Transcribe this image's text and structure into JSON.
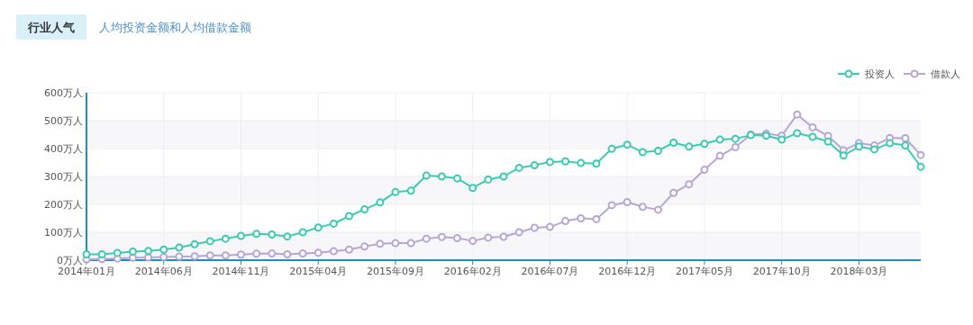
{
  "chart_data": {
    "type": "line",
    "title": "行业人气",
    "subtitle": "人均投资金额和人均借款金额",
    "x": [
      "2014-01",
      "2014-02",
      "2014-03",
      "2014-04",
      "2014-05",
      "2014-06",
      "2014-07",
      "2014-08",
      "2014-09",
      "2014-10",
      "2014-11",
      "2014-12",
      "2015-01",
      "2015-02",
      "2015-03",
      "2015-04",
      "2015-05",
      "2015-06",
      "2015-07",
      "2015-08",
      "2015-09",
      "2015-10",
      "2015-11",
      "2015-12",
      "2016-01",
      "2016-02",
      "2016-03",
      "2016-04",
      "2016-05",
      "2016-06",
      "2016-07",
      "2016-08",
      "2016-09",
      "2016-10",
      "2016-11",
      "2016-12",
      "2017-01",
      "2017-02",
      "2017-03",
      "2017-04",
      "2017-05",
      "2017-06",
      "2017-07",
      "2017-08",
      "2017-09",
      "2017-10",
      "2017-11",
      "2017-12",
      "2018-01",
      "2018-02",
      "2018-03",
      "2018-04",
      "2018-05",
      "2018-06",
      "2018-07"
    ],
    "series": [
      {
        "name": "投资人",
        "color": "#3ccbb2",
        "values": [
          21,
          21,
          26,
          31,
          33,
          38,
          45,
          57,
          68,
          77,
          87,
          94,
          92,
          85,
          100,
          117,
          131,
          158,
          182,
          207,
          244,
          249,
          303,
          300,
          293,
          259,
          289,
          300,
          331,
          340,
          352,
          354,
          348,
          346,
          399,
          414,
          387,
          392,
          421,
          407,
          417,
          432,
          435,
          448,
          446,
          432,
          455,
          442,
          425,
          375,
          407,
          397,
          419,
          411,
          335
        ]
      },
      {
        "name": "借款人",
        "color": "#b7a6d6",
        "values": [
          3,
          4,
          6,
          9,
          10,
          11,
          13,
          14,
          17,
          17,
          20,
          23,
          24,
          21,
          24,
          27,
          32,
          38,
          49,
          59,
          61,
          61,
          77,
          83,
          79,
          69,
          81,
          84,
          100,
          116,
          119,
          140,
          150,
          147,
          197,
          208,
          191,
          181,
          241,
          272,
          324,
          374,
          405,
          450,
          453,
          446,
          522,
          476,
          445,
          394,
          419,
          411,
          438,
          437,
          377
        ]
      }
    ],
    "xlim": [
      "2014-01",
      "2018-07"
    ],
    "xticks": [
      {
        "value": "2014-01",
        "label": "2014年01月"
      },
      {
        "value": "2014-06",
        "label": "2014年06月"
      },
      {
        "value": "2014-11",
        "label": "2014年11月"
      },
      {
        "value": "2015-04",
        "label": "2015年04月"
      },
      {
        "value": "2015-09",
        "label": "2015年09月"
      },
      {
        "value": "2016-02",
        "label": "2016年02月"
      },
      {
        "value": "2016-07",
        "label": "2016年07月"
      },
      {
        "value": "2016-12",
        "label": "2016年12月"
      },
      {
        "value": "2017-05",
        "label": "2017年05月"
      },
      {
        "value": "2017-10",
        "label": "2017年10月"
      },
      {
        "value": "2018-03",
        "label": "2018年03月"
      }
    ],
    "ylim": [
      0,
      600
    ],
    "yticks": [
      {
        "value": 0,
        "label": "0万人"
      },
      {
        "value": 100,
        "label": "100万人"
      },
      {
        "value": 200,
        "label": "200万人"
      },
      {
        "value": 300,
        "label": "300万人"
      },
      {
        "value": 400,
        "label": "400万人"
      },
      {
        "value": 500,
        "label": "500万人"
      },
      {
        "value": 600,
        "label": "600万人"
      }
    ],
    "grid": true,
    "legend": "top right",
    "marker": "circle"
  }
}
